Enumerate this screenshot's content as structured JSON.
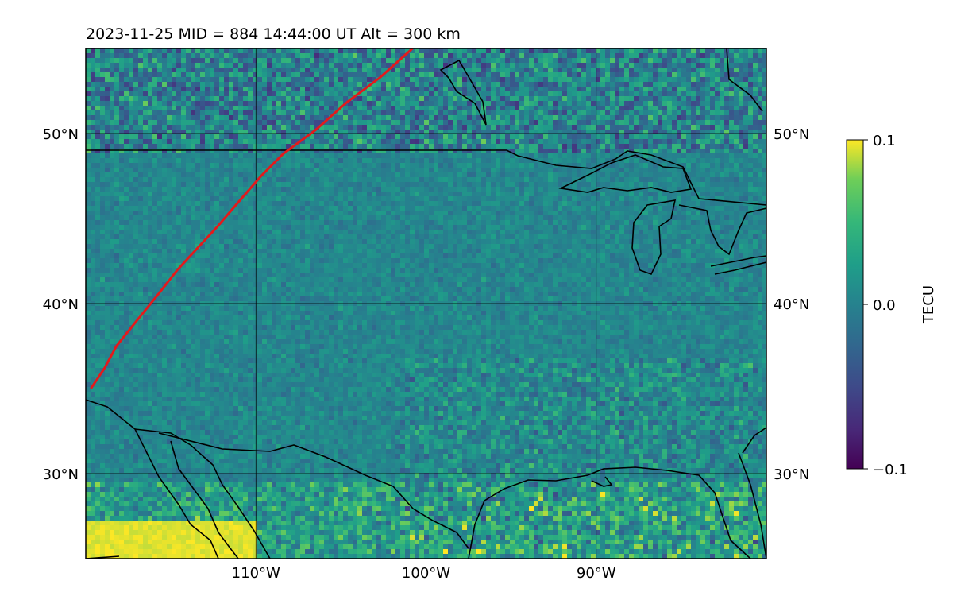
{
  "title": "2023-11-25  MID = 884    14:44:00  UT  Alt = 300 km",
  "map": {
    "lon_range": [
      -120,
      -80
    ],
    "lat_range": [
      25,
      55
    ],
    "lon_ticks": [
      {
        "value": -110,
        "label": "110°W"
      },
      {
        "value": -100,
        "label": "100°W"
      },
      {
        "value": -90,
        "label": "90°W"
      }
    ],
    "lat_ticks": [
      {
        "value": 50,
        "label": "50°N"
      },
      {
        "value": 40,
        "label": "40°N"
      },
      {
        "value": 30,
        "label": "30°N"
      }
    ],
    "gridlines": true,
    "track_color": "#e31a1c",
    "coastline_color": "#000000",
    "track": [
      [
        -119.7,
        35.0
      ],
      [
        -118.9,
        36.2
      ],
      [
        -118.2,
        37.5
      ],
      [
        -117.0,
        39.0
      ],
      [
        -115.7,
        40.6
      ],
      [
        -114.6,
        42.0
      ],
      [
        -113.4,
        43.3
      ],
      [
        -112.2,
        44.6
      ],
      [
        -111.0,
        46.0
      ],
      [
        -109.7,
        47.5
      ],
      [
        -108.4,
        48.8
      ],
      [
        -106.5,
        50.2
      ],
      [
        -104.7,
        51.8
      ],
      [
        -102.7,
        53.3
      ],
      [
        -100.8,
        55.0
      ]
    ]
  },
  "colorbar": {
    "label": "TECU",
    "min": -0.1,
    "max": 0.1,
    "ticks": [
      {
        "value": 0.1,
        "label": "0.1"
      },
      {
        "value": 0.0,
        "label": "0.0"
      },
      {
        "value": -0.1,
        "label": "−0.1"
      }
    ],
    "colormap": "viridis"
  }
}
